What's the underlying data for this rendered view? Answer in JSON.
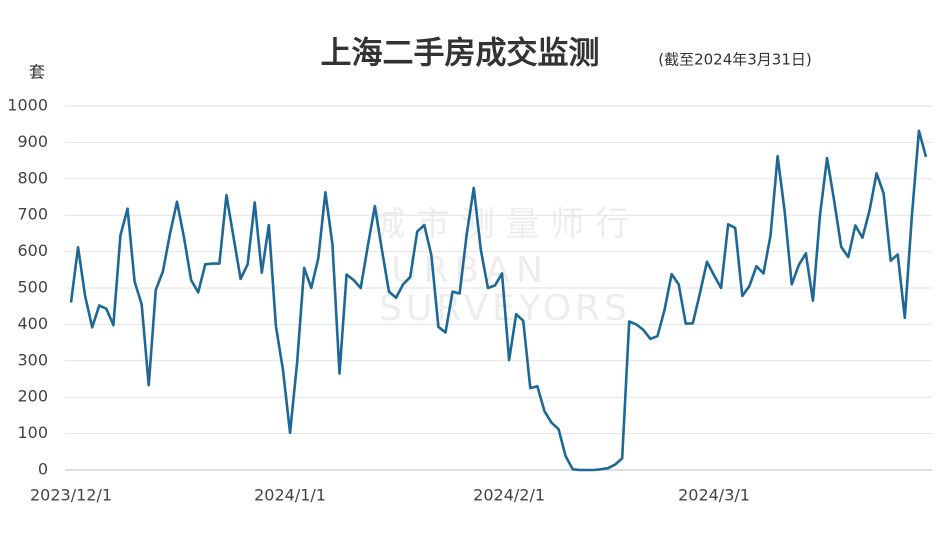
{
  "chart_data": {
    "type": "line",
    "title": "上海二手房成交监测",
    "subtitle": "(截至2024年3月31日)",
    "y_label": "套",
    "watermark": [
      "城 市 测 量 师 行",
      "URBAN",
      "SURVEYORS"
    ],
    "color": "#1d6896",
    "grid": true,
    "ylim": [
      0,
      1000
    ],
    "yticks": [
      0,
      100,
      200,
      300,
      400,
      500,
      600,
      700,
      800,
      900,
      1000
    ],
    "xticks": [
      "2023/12/1",
      "2024/1/1",
      "2024/2/1",
      "2024/3/1"
    ],
    "x": [
      "2023/12/1",
      "2023/12/2",
      "2023/12/3",
      "2023/12/4",
      "2023/12/5",
      "2023/12/6",
      "2023/12/7",
      "2023/12/8",
      "2023/12/9",
      "2023/12/10",
      "2023/12/11",
      "2023/12/12",
      "2023/12/13",
      "2023/12/14",
      "2023/12/15",
      "2023/12/16",
      "2023/12/17",
      "2023/12/18",
      "2023/12/19",
      "2023/12/20",
      "2023/12/21",
      "2023/12/22",
      "2023/12/23",
      "2023/12/24",
      "2023/12/25",
      "2023/12/26",
      "2023/12/27",
      "2023/12/28",
      "2023/12/29",
      "2023/12/30",
      "2023/12/31",
      "2024/1/1",
      "2024/1/2",
      "2024/1/3",
      "2024/1/4",
      "2024/1/5",
      "2024/1/6",
      "2024/1/7",
      "2024/1/8",
      "2024/1/9",
      "2024/1/10",
      "2024/1/11",
      "2024/1/12",
      "2024/1/13",
      "2024/1/14",
      "2024/1/15",
      "2024/1/16",
      "2024/1/17",
      "2024/1/18",
      "2024/1/19",
      "2024/1/20",
      "2024/1/21",
      "2024/1/22",
      "2024/1/23",
      "2024/1/24",
      "2024/1/25",
      "2024/1/26",
      "2024/1/27",
      "2024/1/28",
      "2024/1/29",
      "2024/1/30",
      "2024/1/31",
      "2024/2/1",
      "2024/2/2",
      "2024/2/3",
      "2024/2/4",
      "2024/2/5",
      "2024/2/6",
      "2024/2/7",
      "2024/2/8",
      "2024/2/9",
      "2024/2/10",
      "2024/2/11",
      "2024/2/12",
      "2024/2/13",
      "2024/2/14",
      "2024/2/15",
      "2024/2/16",
      "2024/2/17",
      "2024/2/18",
      "2024/2/19",
      "2024/2/20",
      "2024/2/21",
      "2024/2/22",
      "2024/2/23",
      "2024/2/24",
      "2024/2/25",
      "2024/2/26",
      "2024/2/27",
      "2024/2/28",
      "2024/2/29",
      "2024/3/1",
      "2024/3/2",
      "2024/3/3",
      "2024/3/4",
      "2024/3/5",
      "2024/3/6",
      "2024/3/7",
      "2024/3/8",
      "2024/3/9",
      "2024/3/10",
      "2024/3/11",
      "2024/3/12",
      "2024/3/13",
      "2024/3/14",
      "2024/3/15",
      "2024/3/16",
      "2024/3/17",
      "2024/3/18",
      "2024/3/19",
      "2024/3/20",
      "2024/3/21",
      "2024/3/22",
      "2024/3/23",
      "2024/3/24",
      "2024/3/25",
      "2024/3/26",
      "2024/3/27",
      "2024/3/28",
      "2024/3/29",
      "2024/3/30",
      "2024/3/31"
    ],
    "values": [
      460,
      612,
      478,
      392,
      452,
      443,
      398,
      645,
      718,
      518,
      455,
      233,
      495,
      545,
      648,
      737,
      638,
      522,
      488,
      565,
      567,
      567,
      755,
      640,
      525,
      565,
      735,
      542,
      673,
      395,
      275,
      102,
      295,
      555,
      500,
      582,
      763,
      620,
      265,
      537,
      522,
      500,
      615,
      725,
      605,
      490,
      473,
      510,
      530,
      655,
      673,
      590,
      393,
      378,
      490,
      485,
      647,
      775,
      605,
      500,
      507,
      540,
      302,
      428,
      410,
      225,
      230,
      162,
      130,
      112,
      38,
      2,
      0,
      0,
      0,
      2,
      5,
      15,
      32,
      408,
      400,
      385,
      360,
      368,
      440,
      538,
      510,
      402,
      403,
      485,
      572,
      535,
      500,
      675,
      665,
      478,
      505,
      560,
      540,
      645,
      862,
      710,
      510,
      563,
      595,
      465,
      700,
      857,
      740,
      613,
      585,
      672,
      638,
      712,
      815,
      760,
      575,
      592,
      418,
      698,
      932,
      860
    ]
  }
}
